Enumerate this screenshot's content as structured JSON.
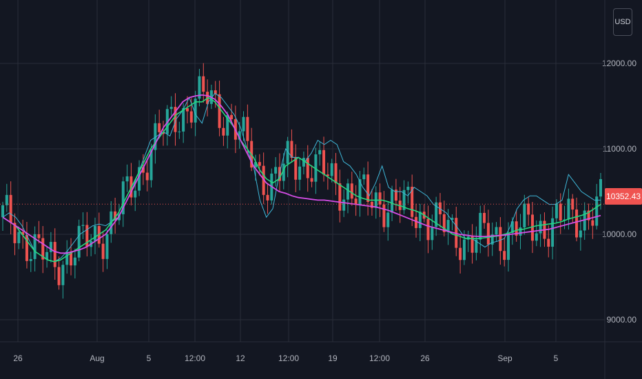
{
  "currency_label": "USD",
  "last_price_label": "10352.43",
  "colors": {
    "background": "#131722",
    "grid": "#2a2e39",
    "up": "#26a69a",
    "down": "#ef5350",
    "ma_fast": "#3fb8d9",
    "ma_mid": "#26d97f",
    "ma_slow": "#d64de6"
  },
  "chart_data": {
    "type": "line",
    "y_ticks": [
      {
        "value": 9000,
        "label": "9000.00"
      },
      {
        "value": 10000,
        "label": "10000.00"
      },
      {
        "value": 11000,
        "label": "11000.00"
      },
      {
        "value": 12000,
        "label": "12000.00"
      }
    ],
    "x_ticks": [
      "26",
      "Aug",
      "5",
      "12:00",
      "12",
      "12:00",
      "19",
      "12:00",
      "26",
      "Sep",
      "5"
    ],
    "ylim": [
      8750,
      12700
    ],
    "last_price": 10352.43,
    "series": [
      {
        "key": "fast",
        "values": [
          10200,
          10250,
          10200,
          10100,
          9950,
          9800,
          9750,
          9700,
          9680,
          9720,
          9800,
          9900,
          10000,
          10050,
          10100,
          10120,
          10100,
          10150,
          10200,
          10350,
          10500,
          10700,
          10900,
          11100,
          11150,
          11200,
          11150,
          11350,
          11450,
          11600,
          11400,
          11300,
          11550,
          11650,
          11600,
          11500,
          11400,
          11250,
          11000,
          10800,
          10400,
          10200,
          10300,
          10700,
          11000,
          10900,
          10900,
          10850,
          10950,
          11100,
          11050,
          11100,
          11050,
          10850,
          10800,
          10700,
          10550,
          10450,
          10600,
          10800,
          10550,
          10500,
          10500,
          10450,
          10550,
          10500,
          10450,
          10350,
          10300,
          10250,
          10150,
          10050,
          9950,
          9950,
          9900,
          9850,
          9900,
          9920,
          9950,
          10100,
          10300,
          10400,
          10450,
          10450,
          10400,
          10350,
          10350,
          10400,
          10700,
          10600,
          10500,
          10450,
          10400,
          10400
        ]
      },
      {
        "key": "mid",
        "values": [
          10200,
          10150,
          10100,
          10000,
          9900,
          9800,
          9750,
          9700,
          9680,
          9700,
          9750,
          9800,
          9850,
          9900,
          9950,
          10000,
          10050,
          10150,
          10250,
          10400,
          10550,
          10700,
          10850,
          11000,
          11100,
          11200,
          11300,
          11400,
          11450,
          11500,
          11550,
          11550,
          11600,
          11550,
          11450,
          11350,
          11250,
          11100,
          11000,
          10900,
          10750,
          10650,
          10600,
          10650,
          10800,
          10850,
          10900,
          10850,
          10800,
          10750,
          10700,
          10650,
          10600,
          10550,
          10500,
          10450,
          10420,
          10400,
          10400,
          10400,
          10380,
          10350,
          10330,
          10300,
          10280,
          10250,
          10200,
          10150,
          10100,
          10050,
          10000,
          9980,
          9950,
          9950,
          9950,
          9960,
          9970,
          9980,
          10000,
          10020,
          10050,
          10060,
          10080,
          10100,
          10110,
          10120,
          10130,
          10150,
          10180,
          10200,
          10220,
          10250,
          10300,
          10350
        ]
      },
      {
        "key": "slow",
        "values": [
          10200,
          10150,
          10100,
          10050,
          10000,
          9950,
          9900,
          9850,
          9800,
          9780,
          9780,
          9800,
          9820,
          9850,
          9900,
          9950,
          10000,
          10100,
          10200,
          10350,
          10500,
          10650,
          10800,
          10950,
          11100,
          11250,
          11350,
          11450,
          11550,
          11600,
          11620,
          11630,
          11620,
          11580,
          11500,
          11400,
          11250,
          11100,
          10950,
          10800,
          10700,
          10600,
          10550,
          10500,
          10480,
          10450,
          10430,
          10420,
          10410,
          10400,
          10400,
          10390,
          10380,
          10370,
          10360,
          10350,
          10340,
          10330,
          10320,
          10300,
          10280,
          10250,
          10220,
          10190,
          10160,
          10130,
          10100,
          10080,
          10060,
          10040,
          10020,
          10000,
          9990,
          9980,
          9975,
          9975,
          9980,
          9985,
          9990,
          10000,
          10010,
          10020,
          10030,
          10040,
          10050,
          10060,
          10080,
          10100,
          10120,
          10140,
          10160,
          10180,
          10200,
          10220
        ]
      }
    ]
  }
}
